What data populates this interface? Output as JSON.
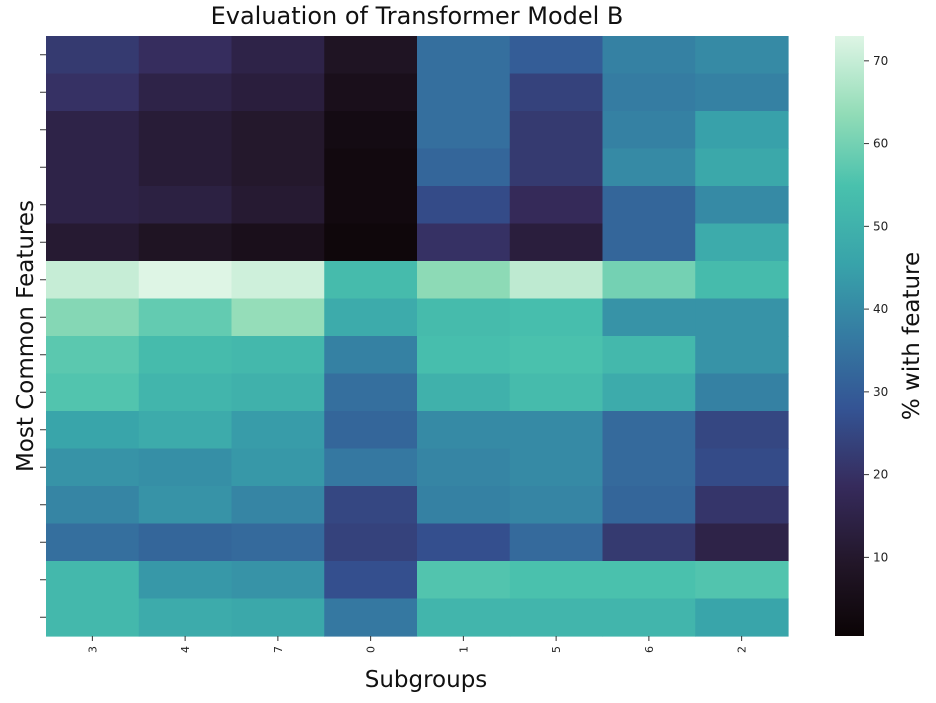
{
  "chart_data": {
    "type": "heatmap",
    "title": "Evaluation of Transformer Model B",
    "xlabel": "Subgroups",
    "ylabel": "Most Common Features",
    "x_categories": [
      "3",
      "4",
      "7",
      "0",
      "1",
      "5",
      "6",
      "2"
    ],
    "y_tick_labels": [],
    "values": [
      [
        22,
        19,
        15,
        8,
        34,
        30,
        38,
        40
      ],
      [
        20,
        15,
        13,
        6,
        34,
        24,
        37,
        38
      ],
      [
        15,
        12,
        10,
        4,
        34,
        22,
        38,
        45
      ],
      [
        15,
        12,
        10,
        3,
        32,
        22,
        40,
        47
      ],
      [
        15,
        14,
        11,
        3,
        26,
        18,
        32,
        40
      ],
      [
        11,
        8,
        6,
        2,
        20,
        13,
        32,
        48
      ],
      [
        70,
        73,
        71,
        53,
        63,
        69,
        60,
        53
      ],
      [
        62,
        58,
        64,
        48,
        53,
        54,
        42,
        42
      ],
      [
        57,
        53,
        52,
        38,
        54,
        55,
        52,
        42
      ],
      [
        56,
        51,
        50,
        34,
        50,
        53,
        48,
        38
      ],
      [
        46,
        48,
        44,
        32,
        40,
        40,
        33,
        25
      ],
      [
        42,
        41,
        43,
        36,
        39,
        40,
        33,
        26
      ],
      [
        39,
        42,
        39,
        25,
        38,
        39,
        32,
        21
      ],
      [
        34,
        32,
        33,
        24,
        27,
        33,
        22,
        15
      ],
      [
        52,
        43,
        42,
        27,
        56,
        55,
        55,
        56
      ],
      [
        52,
        48,
        47,
        36,
        51,
        51,
        51,
        46
      ]
    ],
    "colorbar": {
      "label": "% with feature",
      "range": [
        0.5,
        73
      ],
      "ticks": [
        10,
        20,
        30,
        40,
        50,
        60,
        70
      ],
      "tick_labels": [
        "10",
        "20",
        "30",
        "40",
        "50",
        "60",
        "70"
      ]
    },
    "colormap": "mako"
  }
}
